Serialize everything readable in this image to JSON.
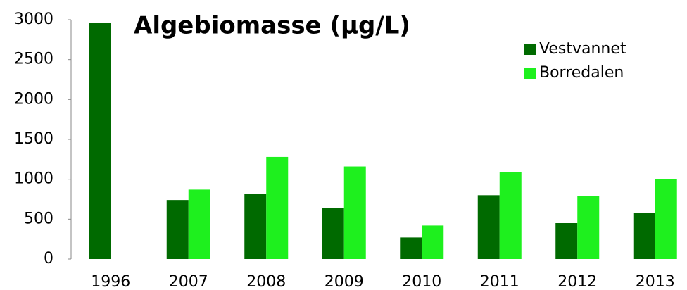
{
  "chart_data": {
    "type": "bar",
    "title": "Algebiomasse (µg/L)",
    "categories": [
      "1996",
      "2007",
      "2008",
      "2009",
      "2010",
      "2011",
      "2012",
      "2013"
    ],
    "series": [
      {
        "name": "Vestvannet",
        "color": "#006a00",
        "values": [
          2960,
          740,
          820,
          640,
          270,
          800,
          450,
          580
        ]
      },
      {
        "name": "Borredalen",
        "color": "#1ef01e",
        "values": [
          null,
          870,
          1280,
          1160,
          420,
          1090,
          790,
          1000
        ]
      }
    ],
    "ylim": [
      0,
      3000
    ],
    "yticks": [
      0,
      500,
      1000,
      1500,
      2000,
      2500,
      3000
    ],
    "legend": "upper right"
  }
}
